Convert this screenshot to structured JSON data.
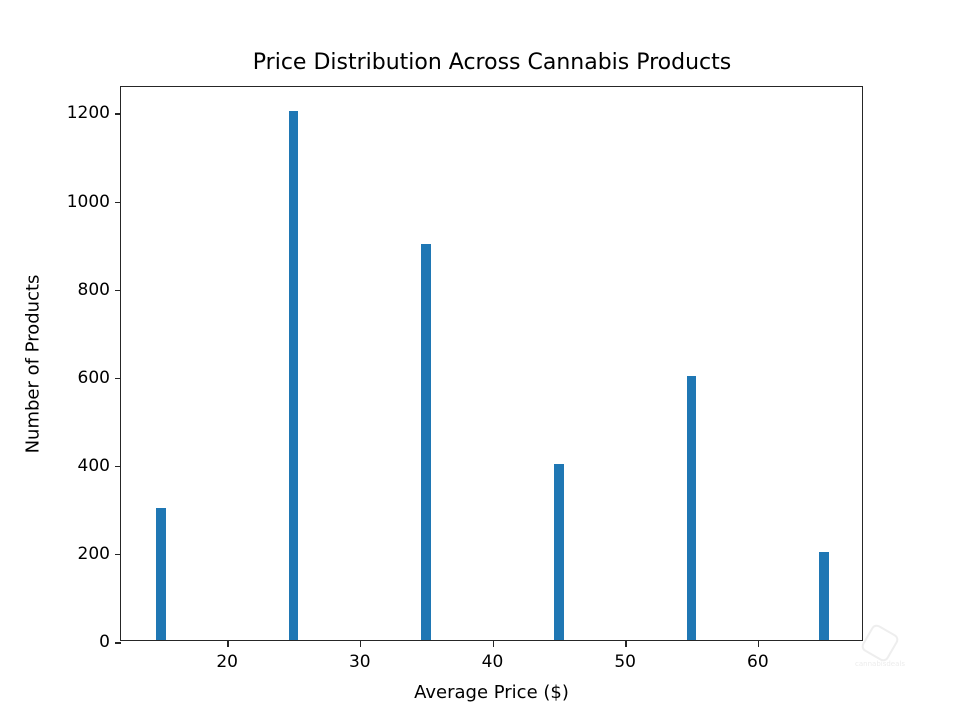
{
  "chart_data": {
    "type": "bar",
    "title": "Price Distribution Across Cannabis Products",
    "xlabel": "Average Price ($)",
    "ylabel": "Number of Products",
    "categories": [
      15,
      25,
      35,
      45,
      55,
      65
    ],
    "values": [
      300,
      1200,
      900,
      400,
      600,
      200
    ],
    "xlim": [
      12,
      68
    ],
    "ylim": [
      0,
      1260
    ],
    "xticks": [
      20,
      30,
      40,
      50,
      60
    ],
    "yticks": [
      0,
      200,
      400,
      600,
      800,
      1000,
      1200
    ],
    "bar_width": 0.75,
    "color": "#1f77b4",
    "grid": false,
    "legend": null
  },
  "watermark": {
    "text": "cannabisdeals"
  }
}
